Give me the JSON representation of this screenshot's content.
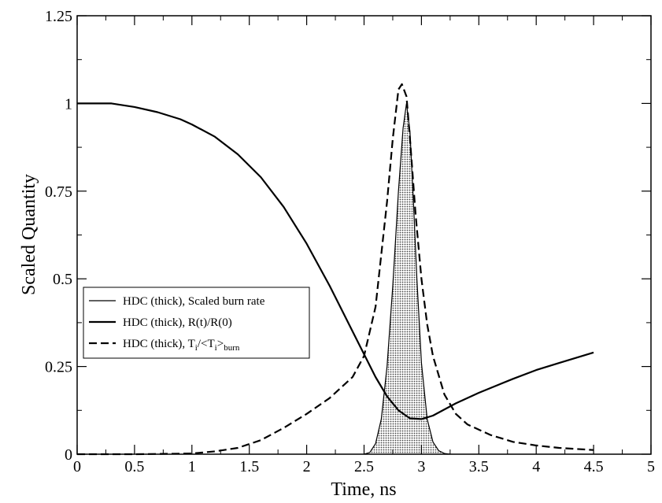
{
  "chart_data": {
    "type": "line",
    "title": "",
    "xlabel": "Time, ns",
    "ylabel": "Scaled Quantity",
    "xlim": [
      0,
      5
    ],
    "ylim": [
      0,
      1.25
    ],
    "x_ticks": [
      0,
      0.5,
      1,
      1.5,
      2,
      2.5,
      3,
      3.5,
      4,
      4.5,
      5
    ],
    "y_ticks": [
      0,
      0.25,
      0.5,
      0.75,
      1,
      1.25
    ],
    "x_tick_labels": [
      "0",
      "0.5",
      "1",
      "1.5",
      "2",
      "2.5",
      "3",
      "3.5",
      "4",
      "4.5",
      "5"
    ],
    "y_tick_labels": [
      "0",
      "0.25",
      "0.5",
      "0.75",
      "1",
      "1.25"
    ],
    "grid": false,
    "legend_position": "left-middle",
    "legend": {
      "burn_rate_label": "HDC (thick), Scaled burn rate",
      "radius_label": "HDC (thick), R(t)/R(0)",
      "temp_label_prefix": "HDC (thick), T",
      "temp_label_sub1": "i",
      "temp_label_mid": "/<T",
      "temp_label_sub2": "i",
      "temp_label_gt": ">",
      "temp_label_sub3": "burn"
    },
    "series": [
      {
        "name": "HDC (thick), Scaled burn rate",
        "style": "solid-shaded",
        "x": [
          2.5,
          2.55,
          2.6,
          2.65,
          2.7,
          2.75,
          2.8,
          2.84,
          2.87,
          2.9,
          2.93,
          2.96,
          3.0,
          3.05,
          3.1,
          3.15,
          3.2,
          3.25
        ],
        "y": [
          0,
          0.005,
          0.03,
          0.1,
          0.25,
          0.48,
          0.75,
          0.93,
          1.0,
          0.92,
          0.72,
          0.5,
          0.26,
          0.1,
          0.035,
          0.01,
          0.002,
          0
        ]
      },
      {
        "name": "HDC (thick), R(t)/R(0)",
        "style": "solid",
        "x": [
          0,
          0.3,
          0.5,
          0.7,
          0.9,
          1.0,
          1.2,
          1.4,
          1.6,
          1.8,
          2.0,
          2.2,
          2.4,
          2.5,
          2.6,
          2.7,
          2.8,
          2.9,
          3.0,
          3.1,
          3.3,
          3.5,
          3.8,
          4.0,
          4.2,
          4.5
        ],
        "y": [
          1.0,
          1.0,
          0.99,
          0.975,
          0.955,
          0.94,
          0.905,
          0.855,
          0.79,
          0.705,
          0.6,
          0.48,
          0.35,
          0.285,
          0.22,
          0.165,
          0.125,
          0.102,
          0.1,
          0.11,
          0.145,
          0.175,
          0.215,
          0.24,
          0.26,
          0.29
        ]
      },
      {
        "name": "HDC (thick), Ti/<Ti>burn",
        "style": "dashed",
        "x": [
          0,
          0.5,
          1.0,
          1.2,
          1.4,
          1.6,
          1.8,
          2.0,
          2.2,
          2.4,
          2.5,
          2.6,
          2.7,
          2.75,
          2.8,
          2.83,
          2.87,
          2.9,
          2.95,
          3.0,
          3.05,
          3.1,
          3.2,
          3.3,
          3.4,
          3.6,
          3.8,
          4.0,
          4.2,
          4.5
        ],
        "y": [
          0,
          0,
          0.002,
          0.008,
          0.018,
          0.04,
          0.075,
          0.115,
          0.16,
          0.22,
          0.28,
          0.42,
          0.72,
          0.9,
          1.04,
          1.055,
          1.02,
          0.9,
          0.68,
          0.5,
          0.37,
          0.28,
          0.17,
          0.115,
          0.085,
          0.055,
          0.035,
          0.025,
          0.018,
          0.012
        ]
      }
    ]
  }
}
